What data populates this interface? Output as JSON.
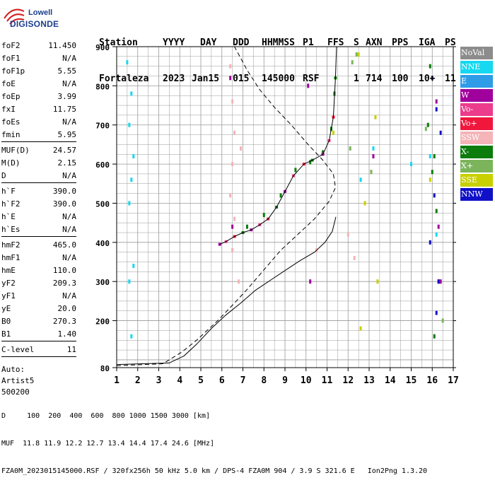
{
  "logo": {
    "line1": "Lowell",
    "line2": "DIGISONDE"
  },
  "header": {
    "labels": [
      "Station",
      "YYYY",
      "DAY",
      "DDD",
      "HHMMSS",
      "P1",
      "FFS",
      "S",
      "AXN",
      "PPS",
      "IGA",
      "PS"
    ],
    "values": [
      "Fortaleza",
      "2023",
      "Jan15",
      "015",
      "145000",
      "RSF",
      "1",
      "714",
      "100",
      "10+",
      "11"
    ]
  },
  "params": [
    {
      "group": [
        {
          "name": "foF2",
          "value": "11.450"
        },
        {
          "name": "foF1",
          "value": "N/A"
        },
        {
          "name": "foF1p",
          "value": "5.55"
        },
        {
          "name": "foE",
          "value": "N/A"
        },
        {
          "name": "foEp",
          "value": "3.99"
        },
        {
          "name": "fxI",
          "value": "11.75"
        },
        {
          "name": "foEs",
          "value": "N/A"
        },
        {
          "name": "fmin",
          "value": "5.95"
        }
      ]
    },
    {
      "group": [
        {
          "name": "MUF(D)",
          "value": "24.57"
        },
        {
          "name": "M(D)",
          "value": "2.15"
        },
        {
          "name": "D",
          "value": "N/A"
        }
      ]
    },
    {
      "group": [
        {
          "name": "h`F",
          "value": "390.0"
        },
        {
          "name": "h`F2",
          "value": "390.0"
        },
        {
          "name": "h`E",
          "value": "N/A"
        },
        {
          "name": "h`Es",
          "value": "N/A"
        }
      ]
    },
    {
      "group": [
        {
          "name": "hmF2",
          "value": "465.0"
        },
        {
          "name": "hmF1",
          "value": "N/A"
        },
        {
          "name": "hmE",
          "value": "110.0"
        },
        {
          "name": "yF2",
          "value": "209.3"
        },
        {
          "name": "yF1",
          "value": "N/A"
        },
        {
          "name": "yE",
          "value": "20.0"
        },
        {
          "name": "B0",
          "value": "270.3"
        },
        {
          "name": "B1",
          "value": "1.40"
        }
      ]
    },
    {
      "group": [
        {
          "name": "C-level",
          "value": "11"
        }
      ]
    }
  ],
  "auto": {
    "line1": "Auto:",
    "line2": "Artist5",
    "line3": "500200"
  },
  "legend": [
    {
      "label": "NoVal",
      "color": "#8c8c8c"
    },
    {
      "label": "NNE",
      "color": "#16d8f0"
    },
    {
      "label": "E",
      "color": "#2f9ce8"
    },
    {
      "label": "W",
      "color": "#a0009c"
    },
    {
      "label": "Vo-",
      "color": "#ec3c8c"
    },
    {
      "label": "Vo+",
      "color": "#f0163c"
    },
    {
      "label": "SSW",
      "color": "#f4b4b8"
    },
    {
      "label": "X-",
      "color": "#0c7c0c"
    },
    {
      "label": "X+",
      "color": "#7cb45c"
    },
    {
      "label": "SSE",
      "color": "#c8d000"
    },
    {
      "label": "NNW",
      "color": "#1010c8"
    }
  ],
  "footer": {
    "line1": "D     100  200  400  600  800 1000 1500 3000 [km]",
    "line2": "MUF  11.8 11.9 12.2 12.7 13.4 14.4 17.4 24.6 [MHz]",
    "line3": "FZA0M_2023015145000.RSF / 320fx256h 50 kHz 5.0 km / DPS-4 FZA0M 904 / 3.9 S 321.6 E   Ion2Png 1.3.20"
  },
  "chart_data": {
    "type": "scatter",
    "x_ticks": [
      "1",
      "2",
      "3",
      "4",
      "5",
      "6",
      "7",
      "8",
      "9",
      "10",
      "11",
      "12",
      "13",
      "14",
      "15",
      "16",
      "17"
    ],
    "y_ticks": [
      "80",
      "200",
      "300",
      "400",
      "500",
      "600",
      "700",
      "800",
      "900"
    ],
    "xlim": [
      1,
      17
    ],
    "ylim": [
      80,
      900
    ],
    "grid": true,
    "series": [
      {
        "style": "solid-line",
        "x": [
          11.45,
          11.4,
          11.3,
          11.1,
          10.8,
          10.3,
          9.9,
          9.4,
          9.0,
          8.6,
          8.2,
          7.8,
          7.4,
          7.0,
          6.6,
          6.2,
          5.9
        ],
        "y": [
          900,
          820,
          720,
          660,
          625,
          610,
          600,
          570,
          530,
          490,
          460,
          445,
          432,
          425,
          415,
          402,
          395
        ]
      },
      {
        "style": "solid-line",
        "x": [
          1.0,
          3.5,
          4.2,
          4.8,
          5.5,
          6.2,
          6.9,
          7.6,
          8.3,
          9.0,
          9.7,
          10.4,
          10.9,
          11.25,
          11.42
        ],
        "y": [
          88,
          92,
          110,
          140,
          180,
          215,
          245,
          278,
          303,
          328,
          353,
          375,
          400,
          428,
          465
        ]
      },
      {
        "style": "dashed-line",
        "x": [
          1.0,
          3.2,
          4.1,
          4.8,
          5.8,
          6.6,
          7.2,
          8.0,
          8.8,
          9.6,
          10.4,
          11.1,
          11.4,
          11.3,
          10.8,
          10.1,
          9.3,
          8.5,
          7.8,
          7.2,
          6.6
        ],
        "y": [
          85,
          90,
          120,
          150,
          200,
          245,
          280,
          330,
          380,
          420,
          460,
          505,
          540,
          575,
          610,
          650,
          700,
          745,
          790,
          840,
          900
        ]
      },
      {
        "name": "X-",
        "style": "points",
        "x": [
          7.2,
          8.0,
          8.8,
          9.5,
          10.2,
          10.8,
          11.2,
          11.35,
          15.9,
          16.1,
          16.3,
          15.8,
          16.2,
          16.0,
          16.1
        ],
        "y": [
          440,
          470,
          520,
          585,
          605,
          630,
          690,
          780,
          850,
          620,
          300,
          700,
          480,
          580,
          160
        ]
      },
      {
        "name": "NNE",
        "style": "points",
        "x": [
          1.5,
          1.7,
          1.6,
          1.8,
          1.7,
          1.6,
          1.8,
          1.6,
          1.7,
          12.6,
          13.2,
          15.0,
          16.2,
          15.9
        ],
        "y": [
          860,
          780,
          700,
          620,
          560,
          500,
          340,
          300,
          160,
          560,
          640,
          600,
          420,
          620
        ]
      },
      {
        "name": "SSW",
        "style": "points",
        "x": [
          6.4,
          6.5,
          6.6,
          6.5,
          6.4,
          6.6,
          6.5,
          6.9,
          6.8,
          12.3,
          12.0,
          10.5
        ],
        "y": [
          850,
          760,
          680,
          600,
          520,
          460,
          380,
          640,
          300,
          360,
          420,
          380
        ]
      },
      {
        "name": "W",
        "style": "points",
        "x": [
          6.4,
          6.5,
          10.1,
          10.2,
          13.2,
          16.2,
          16.3,
          16.4
        ],
        "y": [
          820,
          440,
          800,
          300,
          620,
          760,
          440,
          300
        ]
      },
      {
        "name": "NNW",
        "style": "points",
        "x": [
          16.0,
          16.2,
          16.4,
          16.1,
          15.9,
          16.3,
          16.2
        ],
        "y": [
          820,
          740,
          680,
          520,
          400,
          300,
          220
        ]
      },
      {
        "name": "SSE",
        "style": "points",
        "x": [
          12.5,
          13.3,
          12.8,
          15.9,
          11.3,
          12.6,
          13.4
        ],
        "y": [
          880,
          720,
          500,
          560,
          680,
          180,
          300
        ]
      },
      {
        "name": "X+",
        "style": "points",
        "x": [
          12.1,
          12.4,
          15.7,
          16.5,
          13.1,
          12.2
        ],
        "y": [
          640,
          880,
          690,
          200,
          580,
          860
        ]
      }
    ]
  }
}
